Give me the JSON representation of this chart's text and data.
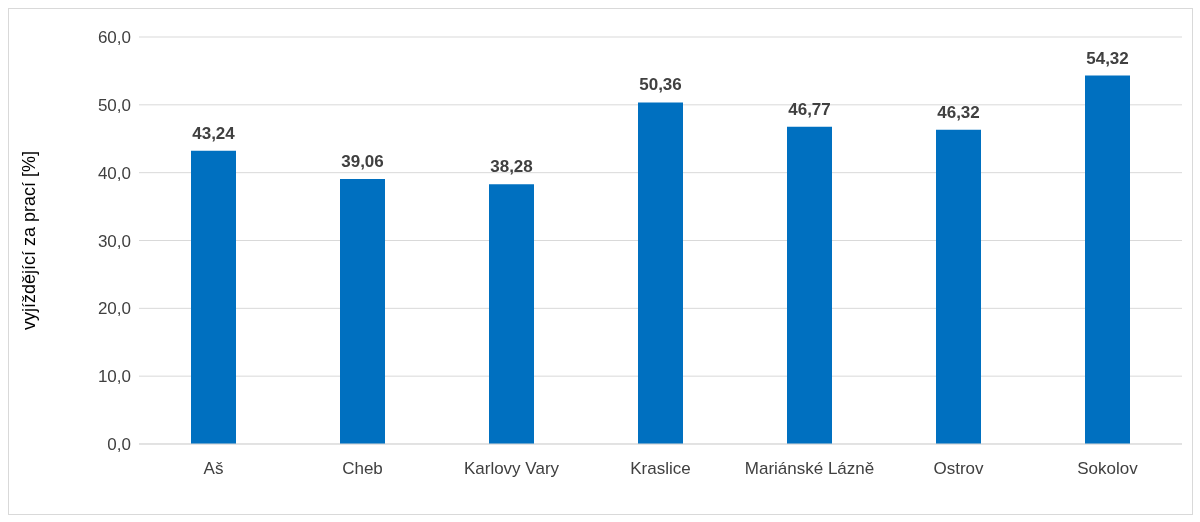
{
  "chart_data": {
    "type": "bar",
    "ylabel": "vyjíždějící  za prací [%]",
    "categories": [
      "Aš",
      "Cheb",
      "Karlovy Vary",
      "Kraslice",
      "Mariánské Lázně",
      "Ostrov",
      "Sokolov"
    ],
    "values": [
      43.24,
      39.06,
      38.28,
      50.36,
      46.77,
      46.32,
      54.32
    ],
    "value_labels": [
      "43,24",
      "39,06",
      "38,28",
      "50,36",
      "46,77",
      "46,32",
      "54,32"
    ],
    "color": "#0070c0",
    "ylim": [
      0,
      60
    ],
    "yticks": [
      {
        "value": 0,
        "label": "0,0"
      },
      {
        "value": 10,
        "label": "10,0"
      },
      {
        "value": 20,
        "label": "20,0"
      },
      {
        "value": 30,
        "label": "30,0"
      },
      {
        "value": 40,
        "label": "40,0"
      },
      {
        "value": 50,
        "label": "50,0"
      },
      {
        "value": 60,
        "label": "60,0"
      }
    ],
    "grid": "y",
    "legend": false
  }
}
